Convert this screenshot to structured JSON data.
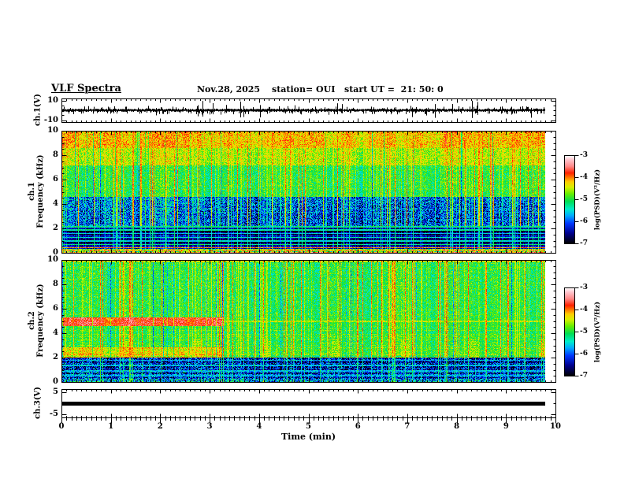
{
  "header": {
    "title": "VLF Spectra",
    "date": "Nov.28, 2025",
    "station": "station= OUI",
    "start_ut": "start UT =  21: 50: 0"
  },
  "xaxis": {
    "label": "Time (min)",
    "tick_labels": [
      "0",
      "1",
      "2",
      "3",
      "4",
      "5",
      "6",
      "7",
      "8",
      "9",
      "10"
    ],
    "lim": [
      0,
      10
    ],
    "minor_step_min": 0.1,
    "data_end_min": 9.8
  },
  "colorbar": {
    "label": "log(PSD)(V²/Hz)",
    "tick_labels": [
      "-3",
      "-4",
      "-5",
      "-6",
      "-7"
    ],
    "lim": [
      -3,
      -7
    ]
  },
  "colormap_stops": [
    {
      "v": -7.0,
      "c": "#000006"
    },
    {
      "v": -6.55,
      "c": "#00008e"
    },
    {
      "v": -6.1,
      "c": "#0038ff"
    },
    {
      "v": -5.75,
      "c": "#00aaff"
    },
    {
      "v": -5.45,
      "c": "#00eec8"
    },
    {
      "v": -5.1,
      "c": "#00dd55"
    },
    {
      "v": -4.75,
      "c": "#66ee00"
    },
    {
      "v": -4.45,
      "c": "#d8f000"
    },
    {
      "v": -4.2,
      "c": "#ffcc00"
    },
    {
      "v": -4.0,
      "c": "#ff7700"
    },
    {
      "v": -3.8,
      "c": "#ff2200"
    },
    {
      "v": -3.5,
      "c": "#ff8888"
    },
    {
      "v": -3.2,
      "c": "#ffc4cc"
    },
    {
      "v": -3.0,
      "c": "#ffffff"
    }
  ],
  "chart_data": [
    {
      "id": "ch1-waveform",
      "type": "line",
      "ylabel": "ch.1(V)",
      "ylim": [
        -12,
        12
      ],
      "yticks": [
        10,
        -10
      ],
      "ytick_labels": [
        "10",
        "-10"
      ],
      "yticks_minor": [
        5,
        0,
        -5
      ],
      "signal": {
        "description": "broadband VLF noise around 0 V with frequent impulsive sferic spikes",
        "typical_amplitude_v": 1.5,
        "spike_amplitude_v": 10,
        "spike_density": 0.05
      }
    },
    {
      "id": "ch1-spectrogram",
      "type": "heatmap",
      "ylabel_lines": [
        "ch.1",
        "Frequency (kHz)"
      ],
      "ylim": [
        0,
        10
      ],
      "yticks": [
        0,
        2,
        4,
        6,
        8,
        10
      ],
      "ytick_labels": [
        "0",
        "2",
        "4",
        "6",
        "8",
        "10"
      ],
      "ytick_minor_step": 0.5,
      "zlim": [
        -7,
        -3
      ],
      "zlabel": "log(PSD)(V²/Hz)",
      "transition_min": 3.3,
      "bands": [
        {
          "f": [
            0,
            0.35
          ],
          "level": -4.5,
          "level_after": -4.5,
          "jitter": 0.8
        },
        {
          "f": [
            0.35,
            2.2
          ],
          "level": -6.7,
          "level_after": -6.8,
          "jitter": 0.35
        },
        {
          "f": [
            2.2,
            4.6
          ],
          "level": -5.95,
          "level_after": -6.15,
          "jitter": 0.75
        },
        {
          "f": [
            4.6,
            7.2
          ],
          "level": -5.05,
          "level_after": -5.05,
          "jitter": 0.4
        },
        {
          "f": [
            7.2,
            8.6
          ],
          "level": -4.55,
          "level_after": -4.6,
          "jitter": 0.4
        },
        {
          "f": [
            8.6,
            10
          ],
          "level": -4.2,
          "level_after": -4.25,
          "jitter": 0.4
        }
      ],
      "hlines": [
        {
          "f": 0.45,
          "level": -4.0
        },
        {
          "f": 0.7,
          "level": -5.2
        },
        {
          "f": 1.0,
          "level": -5.5
        },
        {
          "f": 1.3,
          "level": -5.45
        },
        {
          "f": 1.6,
          "level": -5.6
        },
        {
          "f": 1.9,
          "level": -5.35
        },
        {
          "f": 2.15,
          "level": -5.25
        }
      ],
      "streaks": {
        "density": 0.1,
        "weak_density": 0.22,
        "profile": [
          {
            "f": [
              0,
              2.2
            ],
            "w": 0.45
          },
          {
            "f": [
              2.2,
              4.6
            ],
            "w": 0.75
          },
          {
            "f": [
              4.6,
              10
            ],
            "w": 1.0
          }
        ]
      }
    },
    {
      "id": "ch2-spectrogram",
      "type": "heatmap",
      "ylabel_lines": [
        "ch.2",
        "Frequency (kHz)"
      ],
      "ylim": [
        0,
        10
      ],
      "yticks": [
        0,
        2,
        4,
        6,
        8,
        10
      ],
      "ytick_labels": [
        "0",
        "2",
        "4",
        "6",
        "8",
        "10"
      ],
      "ytick_minor_step": 0.5,
      "zlim": [
        -7,
        -3
      ],
      "zlabel": "log(PSD)(V²/Hz)",
      "transition_min": 3.3,
      "bands": [
        {
          "f": [
            0,
            0.3
          ],
          "level": -5.6,
          "level_after": -5.7,
          "jitter": 0.85
        },
        {
          "f": [
            0.3,
            2.05
          ],
          "level": -6.25,
          "level_after": -6.35,
          "jitter": 0.8
        },
        {
          "f": [
            2.05,
            2.9
          ],
          "level": -4.45,
          "level_after": -5.0,
          "jitter": 0.4
        },
        {
          "f": [
            2.9,
            4.6
          ],
          "level": -5.0,
          "level_after": -5.0,
          "jitter": 0.35
        },
        {
          "f": [
            4.6,
            5.35
          ],
          "level": -3.75,
          "level_after": -5.0,
          "jitter": 0.3
        },
        {
          "f": [
            5.35,
            10
          ],
          "level": -5.05,
          "level_after": -5.05,
          "jitter": 0.4
        }
      ],
      "hlines": [
        {
          "f": 0.55,
          "level": -5.7
        },
        {
          "f": 0.95,
          "level": -5.75
        },
        {
          "f": 1.4,
          "level": -5.7
        },
        {
          "f": 1.8,
          "level": -5.75
        },
        {
          "f": 2.6,
          "level": -4.95
        },
        {
          "f": 5.0,
          "level": -4.55
        },
        {
          "f": 9.9,
          "level": -4.5
        }
      ],
      "streaks": {
        "density": 0.09,
        "weak_density": 0.2,
        "profile": [
          {
            "f": [
              0,
              2
            ],
            "w": 0.4
          },
          {
            "f": [
              2,
              10
            ],
            "w": 1.0
          }
        ]
      },
      "towers": {
        "first_min": 1.35,
        "period_min": 1.4,
        "f": [
          2.1,
          3.5
        ],
        "half_width_min": 0.09,
        "level": -4.6
      }
    },
    {
      "id": "ch3-waveform",
      "type": "line",
      "ylabel": "ch.3(V)",
      "ylim": [
        -6.4,
        6.4
      ],
      "yticks": [
        5,
        -5
      ],
      "ytick_labels": [
        "5",
        "-5"
      ],
      "yticks_minor": [
        0
      ],
      "signal": {
        "description": "constant flat trace at 0 V",
        "value_v": 0,
        "thickness_v": 0.9
      }
    }
  ]
}
